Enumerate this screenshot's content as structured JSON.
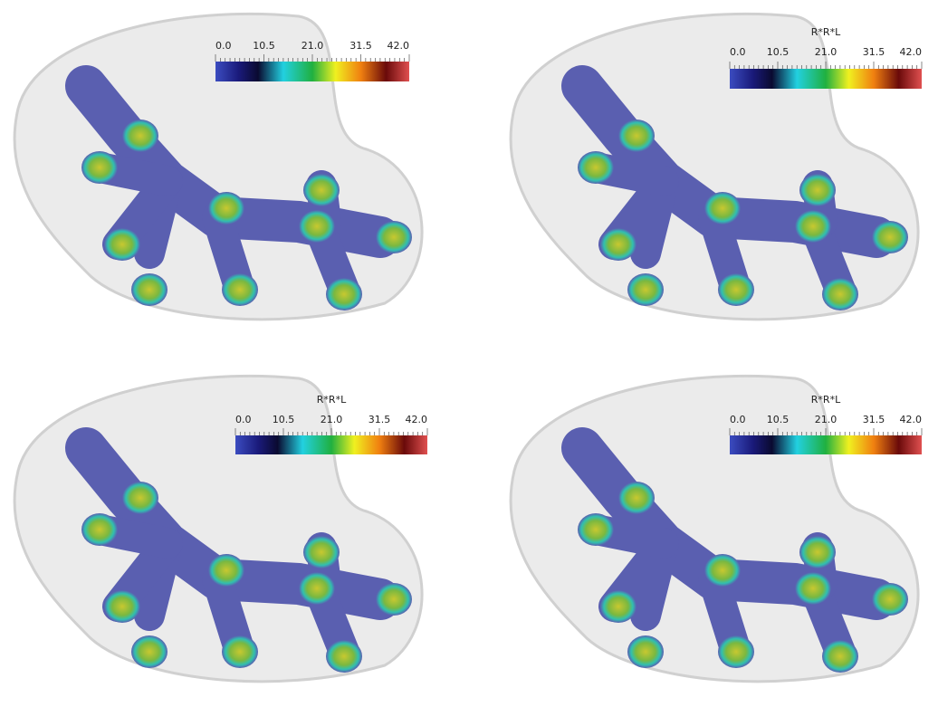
{
  "panels": [
    {
      "colorbar": {
        "ticks": [
          "0.0",
          "10.5",
          "21.0",
          "31.5",
          "42.0"
        ]
      }
    },
    {
      "colorbar": {
        "title": "R*R*L",
        "ticks": [
          "0.0",
          "10.5",
          "21.0",
          "31.5",
          "42.0"
        ]
      }
    },
    {
      "colorbar": {
        "title": "R*R*L",
        "ticks": [
          "0.0",
          "10.5",
          "21.0",
          "31.5",
          "42.0"
        ]
      }
    },
    {
      "colorbar": {
        "title": "R*R*L",
        "ticks": [
          "0.0",
          "10.5",
          "21.0",
          "31.5",
          "42.0"
        ]
      }
    }
  ]
}
